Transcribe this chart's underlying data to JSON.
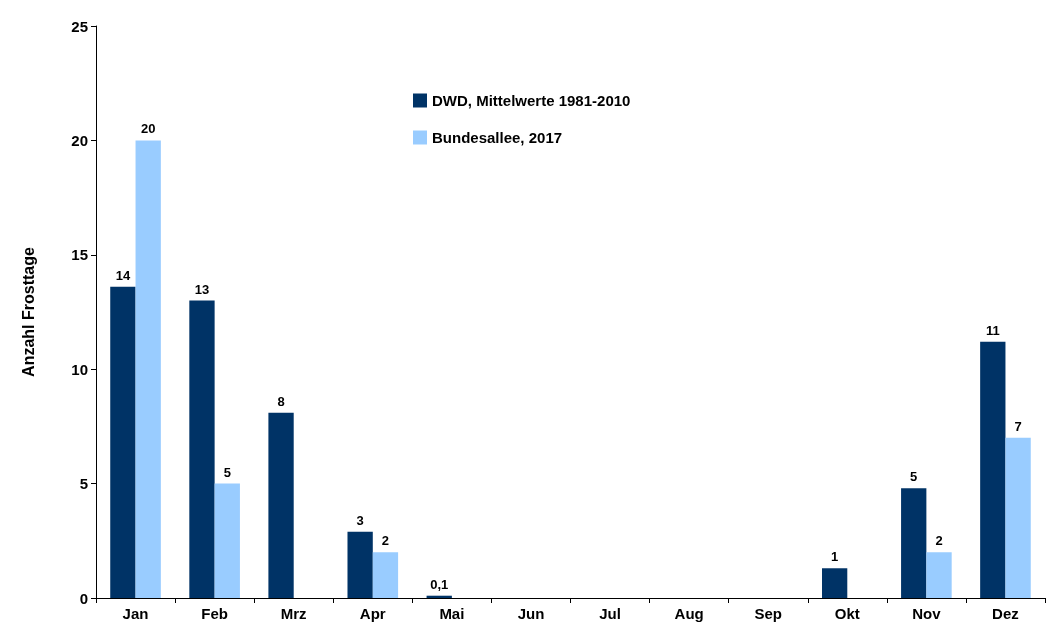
{
  "chart_data": {
    "type": "bar",
    "ylabel": "Anzahl Frosttage",
    "categories": [
      "Jan",
      "Feb",
      "Mrz",
      "Apr",
      "Mai",
      "Jun",
      "Jul",
      "Aug",
      "Sep",
      "Okt",
      "Nov",
      "Dez"
    ],
    "series": [
      {
        "name": "DWD, Mittelwerte 1981-2010",
        "color": "#003366",
        "values": [
          13.6,
          13,
          8.1,
          2.9,
          0.1,
          0,
          0,
          0,
          0,
          1.3,
          4.8,
          11.2
        ],
        "value_labels": [
          "14",
          "13",
          "8",
          "3",
          "0,1",
          null,
          null,
          null,
          null,
          "1",
          "5",
          "11"
        ]
      },
      {
        "name": "Bundesallee, 2017",
        "color": "#99ccff",
        "values": [
          20,
          5,
          null,
          2,
          null,
          null,
          null,
          null,
          null,
          null,
          2,
          7
        ],
        "value_labels": [
          "20",
          "5",
          null,
          "2",
          null,
          null,
          null,
          null,
          null,
          null,
          "2",
          "7"
        ]
      }
    ],
    "ylim": [
      0,
      25
    ],
    "yticks": [
      0,
      5,
      10,
      15,
      20,
      25
    ],
    "grid": false,
    "legend": "top"
  }
}
